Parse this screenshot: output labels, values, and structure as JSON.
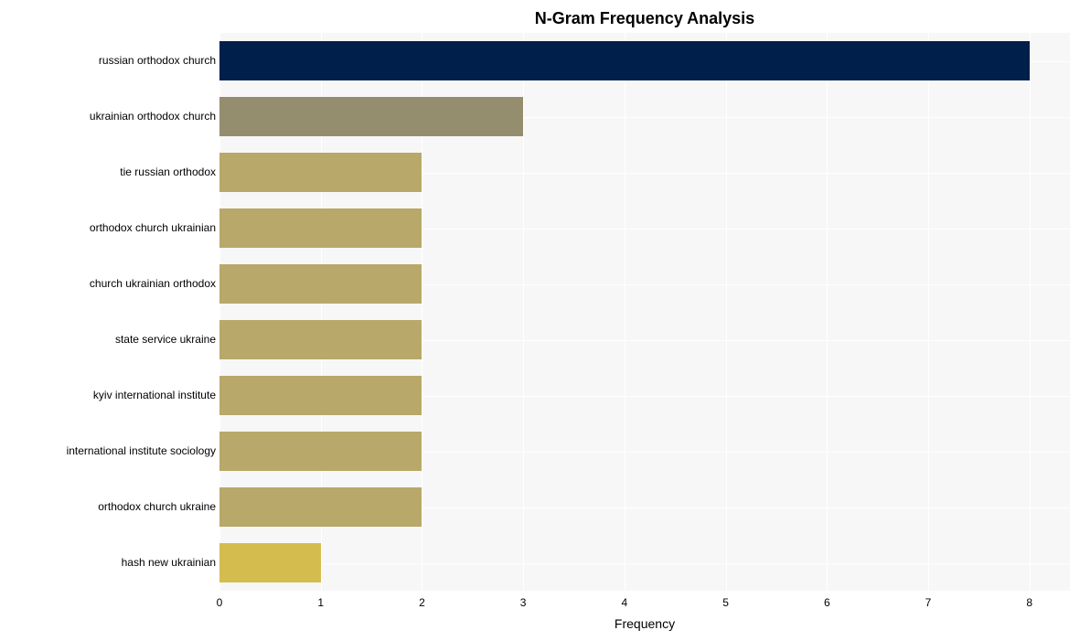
{
  "chart": {
    "type": "bar_horizontal",
    "title": "N-Gram Frequency Analysis",
    "title_fontsize": 18,
    "title_fontweight": "bold",
    "xlabel": "Frequency",
    "xlabel_fontsize": 14,
    "ylabel_fontsize": 12,
    "tick_fontsize": 12,
    "background_color": "#ffffff",
    "plot_background_band": "#f7f7f7",
    "grid_color": "#ffffff",
    "xlim": [
      0,
      8.4
    ],
    "xtick_step": 1,
    "xticks": [
      "0",
      "1",
      "2",
      "3",
      "4",
      "5",
      "6",
      "7",
      "8"
    ],
    "bar_height_ratio": 0.72,
    "categories": [
      "russian orthodox church",
      "ukrainian orthodox church",
      "tie russian orthodox",
      "orthodox church ukrainian",
      "church ukrainian orthodox",
      "state service ukraine",
      "kyiv international institute",
      "international institute sociology",
      "orthodox church ukraine",
      "hash new ukrainian"
    ],
    "values": [
      8,
      3,
      2,
      2,
      2,
      2,
      2,
      2,
      2,
      1
    ],
    "bar_colors": [
      "#001f4a",
      "#948e6f",
      "#b8a869",
      "#b8a869",
      "#b8a869",
      "#b8a869",
      "#b8a869",
      "#b8a869",
      "#b8a869",
      "#d4bd4e"
    ]
  }
}
